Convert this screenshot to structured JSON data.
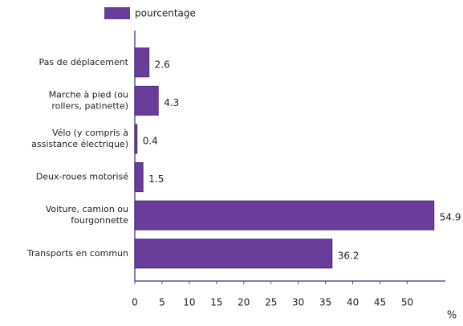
{
  "chart_data": {
    "type": "barh",
    "categories": [
      "Pas de déplacement",
      "Marche à pied (ou\nrollers, patinette)",
      "Vélo (y compris à\nassistance électrique)",
      "Deux-roues motorisé",
      "Voiture, camion ou\nfourgonnette",
      "Transports en commun"
    ],
    "series": [
      {
        "name": "pourcentage",
        "color": "#6a3d9a",
        "values": [
          2.6,
          4.3,
          0.4,
          1.5,
          54.9,
          36.2
        ]
      }
    ],
    "xlabel": "%",
    "xlim": [
      0,
      57
    ],
    "xticks": [
      0,
      5,
      10,
      15,
      20,
      25,
      30,
      35,
      40,
      45,
      50
    ],
    "grid": false,
    "legend": "top"
  }
}
